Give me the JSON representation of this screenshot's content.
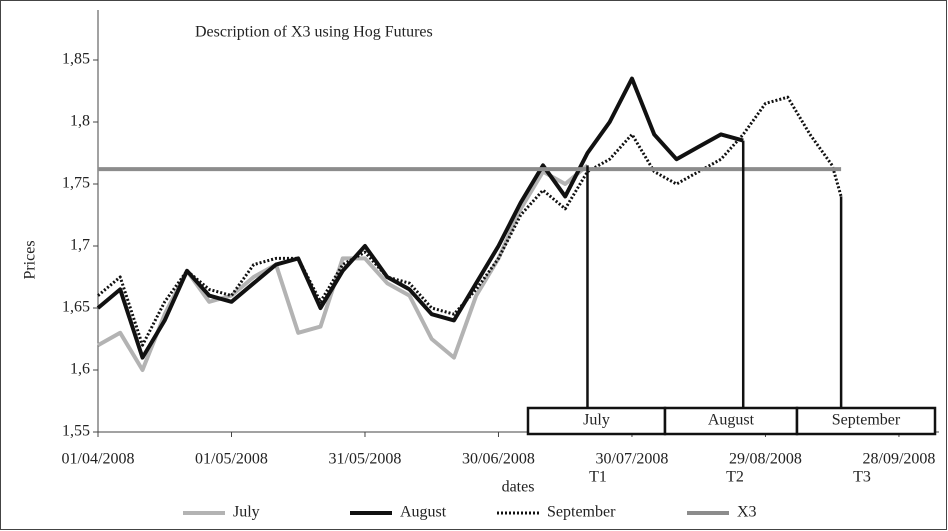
{
  "chart_data": {
    "type": "line",
    "title": "Description of X3 using Hog Futures",
    "xlabel": "dates",
    "ylabel": "Prices",
    "x": [
      "2008-04-01",
      "2008-04-06",
      "2008-04-11",
      "2008-04-16",
      "2008-04-21",
      "2008-04-26",
      "2008-05-01",
      "2008-05-06",
      "2008-05-11",
      "2008-05-16",
      "2008-05-21",
      "2008-05-26",
      "2008-05-31",
      "2008-06-05",
      "2008-06-10",
      "2008-06-15",
      "2008-06-20",
      "2008-06-25",
      "2008-06-30",
      "2008-07-05",
      "2008-07-10",
      "2008-07-15",
      "2008-07-20",
      "2008-07-25",
      "2008-07-30",
      "2008-08-04",
      "2008-08-09",
      "2008-08-14",
      "2008-08-19",
      "2008-08-24",
      "2008-08-29",
      "2008-09-03",
      "2008-09-08",
      "2008-09-13",
      "2008-09-15"
    ],
    "series": [
      {
        "name": "July",
        "color": "#b3b3b3",
        "values": [
          1.62,
          1.63,
          1.6,
          1.645,
          1.68,
          1.655,
          1.66,
          1.675,
          1.685,
          1.63,
          1.635,
          1.69,
          1.69,
          1.67,
          1.66,
          1.625,
          1.61,
          1.66,
          1.69,
          1.73,
          1.76,
          1.75,
          1.765,
          null,
          null,
          null,
          null,
          null,
          null,
          null,
          null,
          null,
          null,
          null,
          null
        ]
      },
      {
        "name": "August",
        "color": "#111111",
        "values": [
          1.65,
          1.665,
          1.61,
          1.64,
          1.68,
          1.66,
          1.655,
          1.67,
          1.685,
          1.69,
          1.65,
          1.68,
          1.7,
          1.675,
          1.665,
          1.645,
          1.64,
          1.67,
          1.7,
          1.735,
          1.765,
          1.74,
          1.775,
          1.8,
          1.835,
          1.79,
          1.77,
          1.78,
          1.79,
          1.785,
          null,
          null,
          null,
          null,
          null
        ]
      },
      {
        "name": "September",
        "color": "#111111",
        "dashed": true,
        "values": [
          1.66,
          1.675,
          1.62,
          1.655,
          1.68,
          1.665,
          1.66,
          1.685,
          1.69,
          1.69,
          1.655,
          1.685,
          1.695,
          1.675,
          1.67,
          1.65,
          1.645,
          1.665,
          1.69,
          1.725,
          1.745,
          1.73,
          1.76,
          1.77,
          1.79,
          1.76,
          1.75,
          1.76,
          1.77,
          1.79,
          1.815,
          1.82,
          1.79,
          1.765,
          1.74
        ]
      },
      {
        "name": "X3",
        "color": "#8c8c8c",
        "values": [
          1.762,
          1.762,
          1.762,
          1.762,
          1.762,
          1.762,
          1.762,
          1.762,
          1.762,
          1.762,
          1.762,
          1.762,
          1.762,
          1.762,
          1.762,
          1.762,
          1.762,
          1.762,
          1.762,
          1.762,
          1.762,
          1.762,
          1.762,
          1.762,
          1.762,
          1.762,
          1.762,
          1.762,
          1.762,
          1.762,
          1.762,
          1.762,
          1.762,
          1.762,
          1.762
        ]
      }
    ],
    "periods": [
      "July",
      "August",
      "September"
    ],
    "period_ends": [
      "T1",
      "T2",
      "T3"
    ],
    "xlim": [
      "2008-04-01",
      "2008-10-07"
    ],
    "xticks": [
      {
        "value": "2008-04-01",
        "label": "01/04/2008"
      },
      {
        "value": "2008-05-01",
        "label": "01/05/2008"
      },
      {
        "value": "2008-05-31",
        "label": "31/05/2008"
      },
      {
        "value": "2008-06-30",
        "label": "30/06/2008"
      },
      {
        "value": "2008-07-30",
        "label": "30/07/2008"
      },
      {
        "value": "2008-08-29",
        "label": "29/08/2008"
      },
      {
        "value": "2008-09-28",
        "label": "28/09/2008"
      }
    ],
    "ylim": [
      1.55,
      1.85
    ],
    "yticks": [
      {
        "value": 1.55,
        "label": "1,55"
      },
      {
        "value": 1.6,
        "label": "1,6"
      },
      {
        "value": 1.65,
        "label": "1,65"
      },
      {
        "value": 1.7,
        "label": "1,7"
      },
      {
        "value": 1.75,
        "label": "1,75"
      },
      {
        "value": 1.8,
        "label": "1,8"
      },
      {
        "value": 1.85,
        "label": "1,85"
      }
    ],
    "grid": false,
    "legend": "bottom"
  }
}
